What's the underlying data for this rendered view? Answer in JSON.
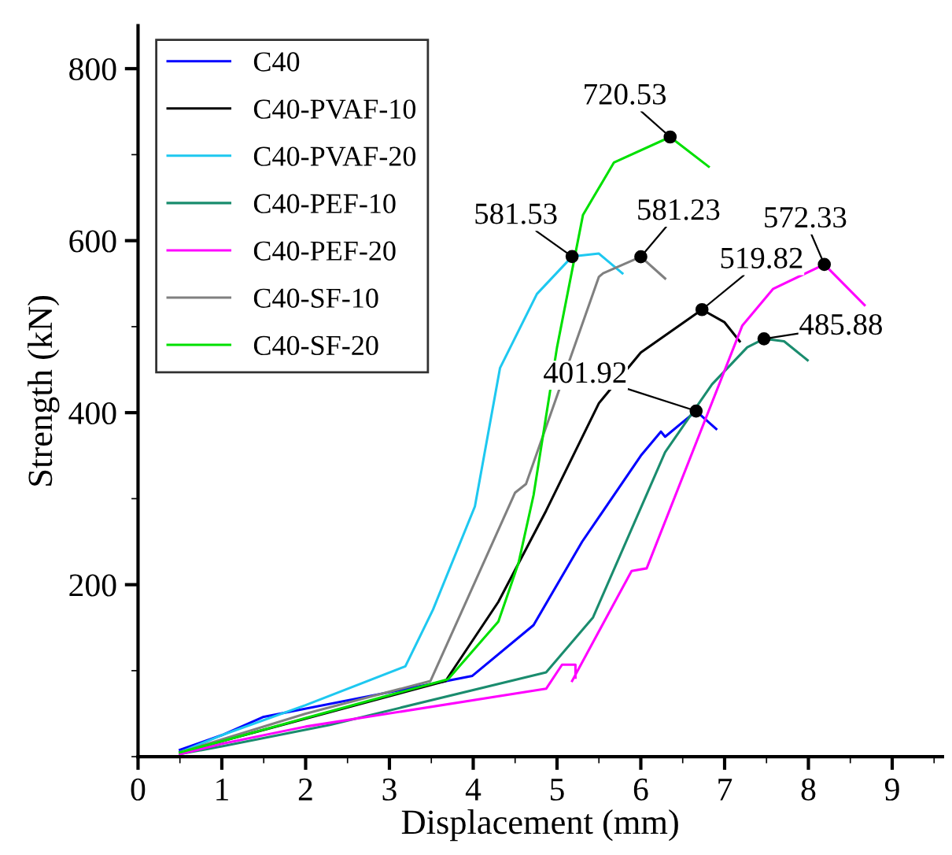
{
  "chart_data": {
    "type": "line",
    "xlabel": "Displacement (mm)",
    "ylabel": "Strength (kN)",
    "xlim": [
      0,
      9.6
    ],
    "ylim": [
      0,
      850
    ],
    "xticks": [
      0,
      1,
      2,
      3,
      4,
      5,
      6,
      7,
      8,
      9
    ],
    "yticks": [
      200,
      400,
      600,
      800
    ],
    "grid": false,
    "legend": "top left",
    "marker": "none",
    "line_style": "solid",
    "series": [
      {
        "name": "C40",
        "color": "#0000ff",
        "x": [
          0.5,
          1.0,
          1.49,
          3.99,
          4.72,
          5.3,
          6.0,
          6.24,
          6.29,
          6.66,
          6.9
        ],
        "values": [
          8,
          25,
          46,
          94,
          153,
          250,
          350,
          378,
          372,
          401.92,
          381
        ]
      },
      {
        "name": "C40-PVAF-10",
        "color": "#000000",
        "x": [
          0.5,
          3.67,
          4.3,
          4.87,
          5.5,
          6.0,
          6.73,
          7.0,
          7.18
        ],
        "values": [
          5,
          88,
          180,
          286,
          411,
          470,
          519.82,
          505,
          483
        ]
      },
      {
        "name": "C40-PVAF-20",
        "color": "#1ec8f0",
        "x": [
          0.5,
          1.0,
          2.0,
          3.19,
          3.52,
          4.02,
          4.32,
          4.76,
          5.18,
          5.5,
          5.78
        ],
        "values": [
          5,
          25,
          60,
          105,
          171,
          291,
          452,
          538,
          581.53,
          585,
          562
        ]
      },
      {
        "name": "C40-PEF-10",
        "color": "#1a8c6e",
        "x": [
          0.5,
          1.0,
          2.29,
          4.87,
          5.43,
          6.29,
          6.85,
          7.27,
          7.47,
          7.71,
          7.99
        ],
        "values": [
          3,
          12,
          37,
          98,
          162,
          354,
          433,
          476,
          485.88,
          483,
          461
        ]
      },
      {
        "name": "C40-PEF-20",
        "color": "#ff00ff",
        "x": [
          0.5,
          1.0,
          2.0,
          4.87,
          5.06,
          5.22,
          5.22,
          null,
          5.18,
          5.89,
          6.07,
          7.21,
          7.58,
          8.19,
          8.67
        ],
        "values": [
          3,
          15,
          35,
          79,
          107,
          107,
          92,
          null,
          88,
          216,
          219,
          501,
          544,
          572.33,
          525
        ]
      },
      {
        "name": "C40-SF-10",
        "color": "#808080",
        "x": [
          0.5,
          1.0,
          2.0,
          3.49,
          4.5,
          4.63,
          5.5,
          5.55,
          6.0,
          6.29
        ],
        "values": [
          5,
          20,
          50,
          88,
          307,
          317,
          558,
          562,
          581.23,
          556
        ]
      },
      {
        "name": "C40-SF-20",
        "color": "#00e000",
        "x": [
          0.5,
          1.0,
          2.0,
          3.7,
          4.3,
          4.54,
          4.72,
          5.0,
          5.31,
          5.68,
          6.35,
          6.81
        ],
        "values": [
          5,
          18,
          45,
          90,
          157,
          225,
          304,
          476,
          630,
          691,
          720.53,
          686
        ]
      }
    ],
    "annotations": [
      {
        "text": "401.92",
        "x": 6.66,
        "y": 401.92
      },
      {
        "text": "519.82",
        "x": 6.73,
        "y": 519.82
      },
      {
        "text": "581.53",
        "x": 5.18,
        "y": 581.53
      },
      {
        "text": "485.88",
        "x": 7.47,
        "y": 485.88
      },
      {
        "text": "572.33",
        "x": 8.19,
        "y": 572.33
      },
      {
        "text": "581.23",
        "x": 6.0,
        "y": 581.23
      },
      {
        "text": "720.53",
        "x": 6.35,
        "y": 720.53
      }
    ]
  }
}
